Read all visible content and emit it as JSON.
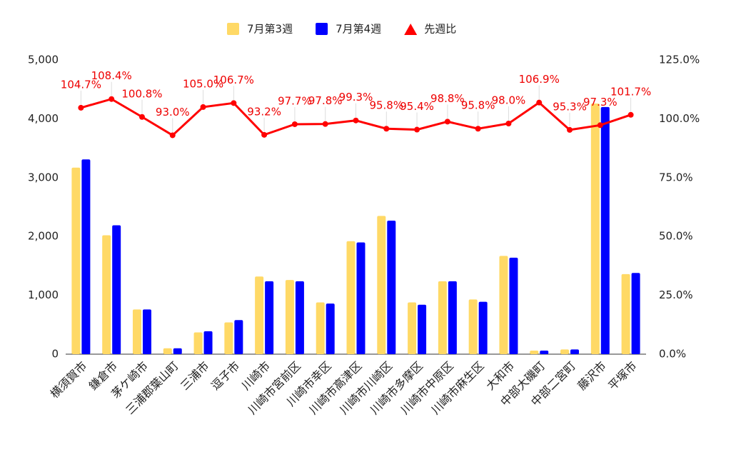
{
  "chart_data": {
    "type": "bar",
    "categories": [
      "横須賀市",
      "鎌倉市",
      "茅ケ崎市",
      "三浦郡葉山町",
      "三浦市",
      "逗子市",
      "川崎市",
      "川崎市宮前区",
      "川崎市幸区",
      "川崎市高津区",
      "川崎市川崎区",
      "川崎市多摩区",
      "川崎市中原区",
      "川崎市麻生区",
      "大和市",
      "中部大磯町",
      "中部二宮町",
      "藤沢市",
      "平塚市"
    ],
    "series": [
      {
        "name": "7月第3週",
        "color": "#ffd966",
        "values": [
          3170,
          2020,
          760,
          100,
          370,
          540,
          1320,
          1260,
          880,
          1920,
          2350,
          880,
          1240,
          930,
          1670,
          60,
          80,
          4260,
          1360
        ]
      },
      {
        "name": "7月第4週",
        "color": "#0000ff",
        "values": [
          3310,
          2190,
          760,
          100,
          390,
          580,
          1240,
          1240,
          860,
          1900,
          2270,
          840,
          1240,
          890,
          1640,
          60,
          80,
          4200,
          1380
        ]
      },
      {
        "name": "先週比",
        "type": "line",
        "axis": "y2",
        "color": "#ff0000",
        "values": [
          104.7,
          108.4,
          100.8,
          93.0,
          105.0,
          106.7,
          93.2,
          97.7,
          97.8,
          99.3,
          95.8,
          95.4,
          98.8,
          95.8,
          98.0,
          106.9,
          95.3,
          97.3,
          101.7
        ],
        "value_labels": [
          "104.7%",
          "108.4%",
          "100.8%",
          "93.0%",
          "105.0%",
          "106.7%",
          "93.2%",
          "97.7%",
          "97.8%",
          "99.3%",
          "95.8%",
          "95.4%",
          "98.8%",
          "95.8%",
          "98.0%",
          "106.9%",
          "95.3%",
          "97.3%",
          "101.7%"
        ]
      }
    ],
    "ylim": [
      0,
      5000
    ],
    "yticks": [
      {
        "value": 0,
        "label": "0"
      },
      {
        "value": 1000,
        "label": "1,000"
      },
      {
        "value": 2000,
        "label": "2,000"
      },
      {
        "value": 3000,
        "label": "3,000"
      },
      {
        "value": 4000,
        "label": "4,000"
      },
      {
        "value": 5000,
        "label": "5,000"
      }
    ],
    "y2lim": [
      0,
      125
    ],
    "y2ticks": [
      {
        "value": 0,
        "label": "0.0%"
      },
      {
        "value": 25,
        "label": "25.0%"
      },
      {
        "value": 50,
        "label": "50.0%"
      },
      {
        "value": 75,
        "label": "75.0%"
      },
      {
        "value": 100,
        "label": "100.0%"
      },
      {
        "value": 125,
        "label": "125.0%"
      }
    ],
    "grid": false,
    "legend": "top"
  }
}
